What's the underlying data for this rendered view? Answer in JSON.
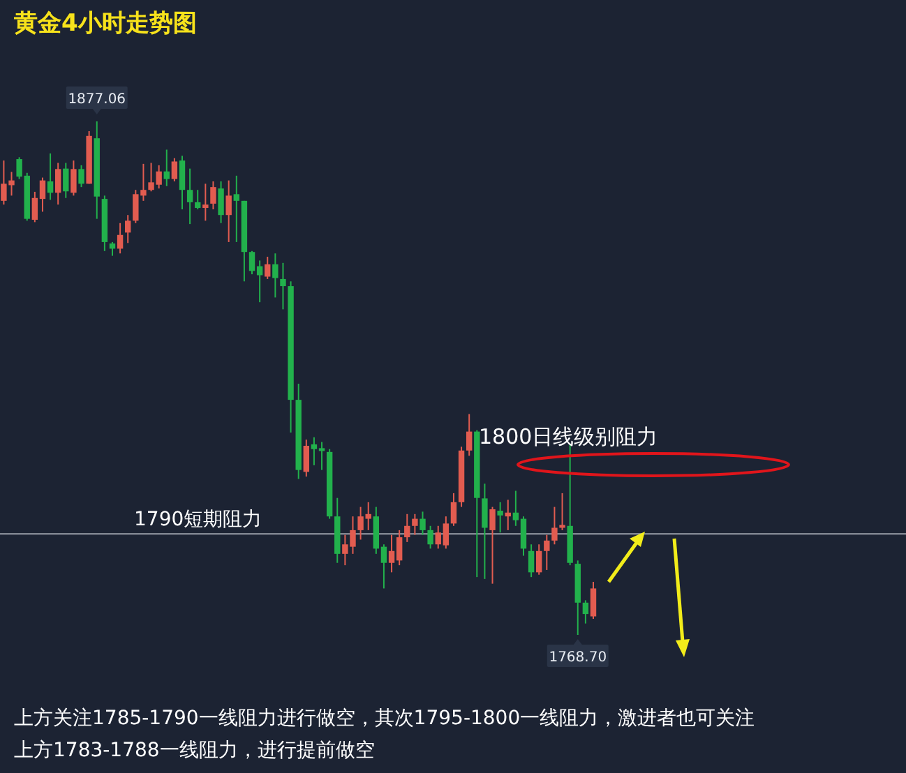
{
  "chart_data": {
    "type": "candlestick",
    "title": "黄金4小时走势图",
    "categories": [
      null,
      null,
      null,
      null,
      null,
      null,
      null,
      null,
      null,
      null,
      null,
      null,
      null,
      null,
      null,
      null,
      null,
      null,
      null,
      null,
      null,
      null,
      null,
      null,
      null,
      null,
      null,
      null,
      null,
      null,
      null,
      null,
      null,
      null,
      null,
      null,
      null,
      null,
      null,
      null,
      null,
      null,
      null,
      null,
      null,
      null,
      null,
      null,
      null,
      null,
      null,
      null,
      null,
      null,
      null,
      null,
      null,
      null,
      null,
      null,
      null,
      null,
      null,
      null,
      null,
      null,
      null,
      null,
      null,
      null,
      null,
      null,
      null,
      null,
      null,
      null,
      null
    ],
    "ohlc": [
      [
        1860.3,
        1868.8,
        1859.5,
        1863.9
      ],
      [
        1863.6,
        1866.4,
        1861.4,
        1864.6
      ],
      [
        1869.1,
        1869.5,
        1864.9,
        1865.4
      ],
      [
        1865.6,
        1866.2,
        1856.1,
        1856.5
      ],
      [
        1856.3,
        1862.2,
        1855.8,
        1860.9
      ],
      [
        1860.7,
        1865.2,
        1858.0,
        1864.6
      ],
      [
        1864.4,
        1870.3,
        1860.5,
        1862.0
      ],
      [
        1862.0,
        1868.3,
        1859.5,
        1867.0
      ],
      [
        1867.1,
        1868.3,
        1860.9,
        1862.3
      ],
      [
        1862.0,
        1868.8,
        1861.4,
        1867.0
      ],
      [
        1867.0,
        1867.8,
        1863.2,
        1863.9
      ],
      [
        1863.9,
        1875.0,
        1863.9,
        1874.0
      ],
      [
        1873.5,
        1877.06,
        1856.5,
        1861.2
      ],
      [
        1860.7,
        1861.4,
        1849.7,
        1851.6
      ],
      [
        1851.3,
        1851.6,
        1848.7,
        1850.2
      ],
      [
        1850.2,
        1855.6,
        1849.2,
        1853.1
      ],
      [
        1853.6,
        1857.3,
        1851.4,
        1856.1
      ],
      [
        1856.1,
        1862.6,
        1855.6,
        1861.7
      ],
      [
        1861.4,
        1868.1,
        1860.3,
        1862.6
      ],
      [
        1862.6,
        1868.3,
        1862.3,
        1864.2
      ],
      [
        1863.7,
        1867.8,
        1862.9,
        1866.5
      ],
      [
        1866.5,
        1871.1,
        1863.4,
        1864.9
      ],
      [
        1864.9,
        1869.3,
        1864.4,
        1868.6
      ],
      [
        1868.8,
        1869.8,
        1858.5,
        1862.6
      ],
      [
        1862.6,
        1867.1,
        1855.4,
        1860.0
      ],
      [
        1860.0,
        1862.6,
        1858.5,
        1858.8
      ],
      [
        1858.8,
        1863.9,
        1856.1,
        1859.5
      ],
      [
        1859.7,
        1864.4,
        1858.5,
        1863.2
      ],
      [
        1862.9,
        1864.4,
        1855.6,
        1857.3
      ],
      [
        1857.3,
        1864.6,
        1851.6,
        1861.4
      ],
      [
        1861.7,
        1865.6,
        1851.6,
        1860.3
      ],
      [
        1860.3,
        1860.3,
        1843.3,
        1849.5
      ],
      [
        1849.5,
        1849.7,
        1844.8,
        1845.5
      ],
      [
        1846.5,
        1847.7,
        1838.9,
        1844.6
      ],
      [
        1844.3,
        1848.5,
        1843.8,
        1846.9
      ],
      [
        1846.9,
        1849.2,
        1839.9,
        1844.0
      ],
      [
        1843.8,
        1847.2,
        1837.4,
        1842.3
      ],
      [
        1842.3,
        1843.3,
        1811.4,
        1818.3
      ],
      [
        1818.3,
        1821.7,
        1801.6,
        1803.5
      ],
      [
        1803.1,
        1809.9,
        1802.1,
        1808.6
      ],
      [
        1808.9,
        1810.4,
        1804.5,
        1807.9
      ],
      [
        1808.1,
        1809.4,
        1803.5,
        1807.5
      ],
      [
        1807.3,
        1807.9,
        1793.2,
        1793.7
      ],
      [
        1793.7,
        1797.6,
        1783.9,
        1785.8
      ],
      [
        1785.8,
        1789.8,
        1783.4,
        1787.8
      ],
      [
        1787.3,
        1793.7,
        1785.8,
        1790.8
      ],
      [
        1790.8,
        1795.7,
        1788.8,
        1793.7
      ],
      [
        1793.2,
        1796.7,
        1790.8,
        1794.2
      ],
      [
        1793.7,
        1795.7,
        1785.8,
        1786.9
      ],
      [
        1787.3,
        1787.8,
        1778.5,
        1783.9
      ],
      [
        1783.9,
        1789.8,
        1781.9,
        1786.4
      ],
      [
        1784.4,
        1790.8,
        1783.4,
        1789.3
      ],
      [
        1789.3,
        1794.2,
        1788.3,
        1791.7
      ],
      [
        1791.7,
        1794.2,
        1789.8,
        1793.2
      ],
      [
        1793.2,
        1794.7,
        1789.8,
        1790.8
      ],
      [
        1790.8,
        1791.7,
        1786.9,
        1787.8
      ],
      [
        1787.8,
        1791.7,
        1786.9,
        1790.3
      ],
      [
        1787.6,
        1793.7,
        1786.9,
        1792.2
      ],
      [
        1792.2,
        1798.6,
        1791.7,
        1796.7
      ],
      [
        1796.7,
        1808.4,
        1795.7,
        1807.6
      ],
      [
        1807.6,
        1815.3,
        1806.5,
        1811.6
      ],
      [
        1811.6,
        1811.9,
        1780.9,
        1797.6
      ],
      [
        1797.5,
        1800.6,
        1780.5,
        1791.3
      ],
      [
        1790.8,
        1795.7,
        1779.5,
        1795.2
      ],
      [
        1794.9,
        1796.7,
        1790.3,
        1793.9
      ],
      [
        1793.7,
        1797.2,
        1790.8,
        1794.5
      ],
      [
        1794.5,
        1799.1,
        1791.7,
        1792.9
      ],
      [
        1793.2,
        1793.7,
        1785.4,
        1786.9
      ],
      [
        1786.4,
        1787.8,
        1780.9,
        1781.9
      ],
      [
        1781.9,
        1787.8,
        1781.4,
        1786.4
      ],
      [
        1786.4,
        1789.8,
        1782.4,
        1788.6
      ],
      [
        1788.6,
        1795.7,
        1787.8,
        1791.3
      ],
      [
        1791.3,
        1798.6,
        1790.8,
        1791.9
      ],
      [
        1791.7,
        1808.9,
        1783.4,
        1783.9
      ],
      [
        1783.7,
        1784.4,
        1768.7,
        1775.5
      ],
      [
        1775.5,
        1776.0,
        1771.1,
        1773.1
      ],
      [
        1772.6,
        1779.9,
        1772.1,
        1778.5
      ]
    ],
    "colors": [
      "#e25c50",
      "#e25c50",
      "#22b14c",
      "#22b14c",
      "#e25c50",
      "#e25c50",
      "#22b14c",
      "#e25c50",
      "#22b14c",
      "#e25c50",
      "#22b14c",
      "#e25c50",
      "#22b14c",
      "#22b14c",
      "#22b14c",
      "#e25c50",
      "#e25c50",
      "#e25c50",
      "#e25c50",
      "#e25c50",
      "#e25c50",
      "#22b14c",
      "#e25c50",
      "#22b14c",
      "#22b14c",
      "#22b14c",
      "#e25c50",
      "#e25c50",
      "#22b14c",
      "#e25c50",
      "#22b14c",
      "#22b14c",
      "#22b14c",
      "#22b14c",
      "#e25c50",
      "#22b14c",
      "#22b14c",
      "#22b14c",
      "#22b14c",
      "#e25c50",
      "#22b14c",
      "#22b14c",
      "#22b14c",
      "#22b14c",
      "#e25c50",
      "#e25c50",
      "#e25c50",
      "#e25c50",
      "#22b14c",
      "#22b14c",
      "#e25c50",
      "#e25c50",
      "#e25c50",
      "#e25c50",
      "#22b14c",
      "#22b14c",
      "#e25c50",
      "#e25c50",
      "#e25c50",
      "#e25c50",
      "#e25c50",
      "#22b14c",
      "#22b14c",
      "#e25c50",
      "#22b14c",
      "#e25c50",
      "#22b14c",
      "#22b14c",
      "#22b14c",
      "#e25c50",
      "#e25c50",
      "#e25c50",
      "#e25c50",
      "#22b14c",
      "#22b14c",
      "#22b14c",
      "#e25c50"
    ],
    "ref_lines": [
      {
        "axis": "y",
        "value": 1790,
        "label": "1790短期阻力",
        "color": "#9aa0aa"
      }
    ],
    "annotations": [
      {
        "text": "1877.06",
        "y": 1877.06
      },
      {
        "text": "1768.70",
        "y": 1768.7
      },
      "1800日线级别阻力",
      "上方关注1785-1790一线阻力进行做空，其次1795-1800一线阻力，激进者也可关注",
      "上方1783-1788一线阻力，进行提前做空"
    ]
  }
}
